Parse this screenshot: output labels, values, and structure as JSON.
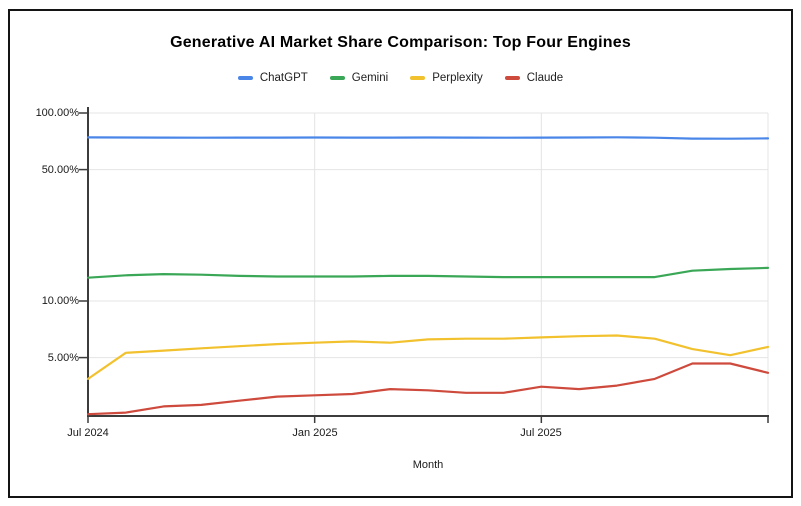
{
  "chart_data": {
    "type": "line",
    "title": "Generative AI Market Share Comparison: Top Four Engines",
    "xlabel": "Month",
    "ylabel": "",
    "yscale": "log",
    "grid": true,
    "legend_position": "top",
    "ylim_percent": [
      2.4,
      100
    ],
    "x": [
      "Jul 2024",
      "Aug 2024",
      "Sep 2024",
      "Oct 2024",
      "Nov 2024",
      "Dec 2024",
      "Jan 2025",
      "Feb 2025",
      "Mar 2025",
      "Apr 2025",
      "May 2025",
      "Jun 2025",
      "Jul 2025",
      "Aug 2025",
      "Sep 2025",
      "Oct 2025",
      "Nov 2025",
      "Dec 2025",
      "Jan 2026"
    ],
    "y_ticks": [
      {
        "label": "100.00%",
        "value": 100
      },
      {
        "label": "50.00%",
        "value": 50
      },
      {
        "label": "10.00%",
        "value": 10
      },
      {
        "label": "5.00%",
        "value": 5
      }
    ],
    "x_tick_labels": [
      {
        "label": "Jul 2024",
        "index": 0
      },
      {
        "label": "Jan 2025",
        "index": 6
      },
      {
        "label": "Jul 2025",
        "index": 12
      },
      {
        "label": "",
        "index": 18
      }
    ],
    "series": [
      {
        "name": "ChatGPT",
        "color": "#4A86E8",
        "values": [
          74.2,
          74.1,
          74.0,
          73.9,
          74.0,
          74.0,
          74.1,
          74.0,
          74.0,
          74.1,
          74.0,
          73.9,
          74.0,
          74.1,
          74.3,
          73.9,
          73.1,
          73.0,
          73.3
        ]
      },
      {
        "name": "Gemini",
        "color": "#3AA757",
        "values": [
          13.3,
          13.7,
          13.9,
          13.8,
          13.6,
          13.5,
          13.5,
          13.5,
          13.6,
          13.6,
          13.5,
          13.4,
          13.4,
          13.4,
          13.4,
          13.4,
          14.5,
          14.8,
          15.0
        ]
      },
      {
        "name": "Perplexity",
        "color": "#F2C12E",
        "values": [
          3.85,
          5.3,
          5.45,
          5.6,
          5.75,
          5.9,
          6.0,
          6.1,
          6.0,
          6.25,
          6.3,
          6.3,
          6.4,
          6.5,
          6.55,
          6.3,
          5.55,
          5.15,
          5.7
        ]
      },
      {
        "name": "Claude",
        "color": "#CE4A3D",
        "values": [
          2.5,
          2.55,
          2.75,
          2.8,
          2.95,
          3.1,
          3.15,
          3.2,
          3.4,
          3.35,
          3.25,
          3.25,
          3.5,
          3.4,
          3.55,
          3.85,
          4.65,
          4.65,
          4.15
        ]
      }
    ],
    "colors": {
      "gridline": "#e4e4e4",
      "axis": "#3c3c3c",
      "text": "#1a1a1a",
      "background": "#ffffff",
      "border": "#141414"
    }
  }
}
